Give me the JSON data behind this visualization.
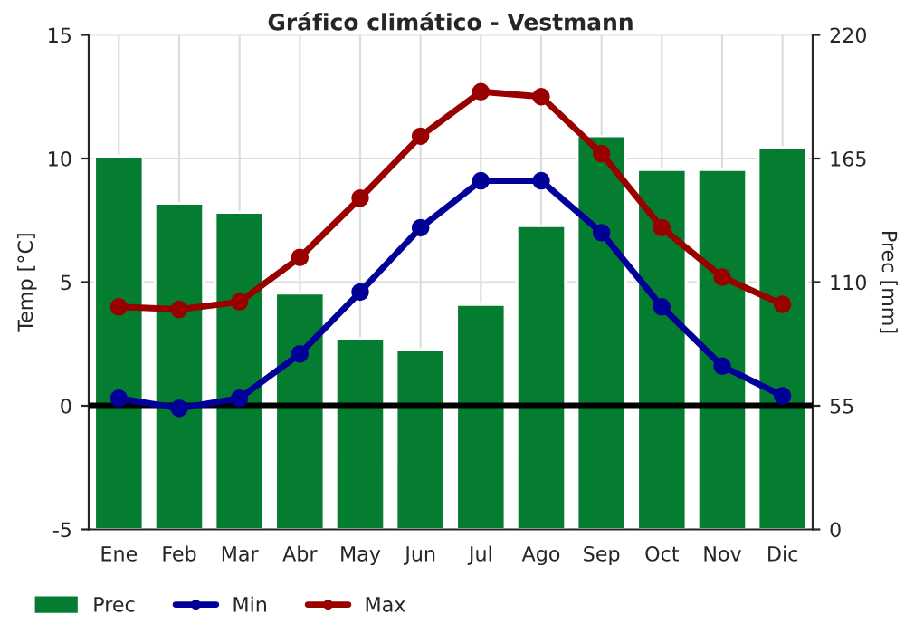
{
  "chart_data": {
    "type": "bar",
    "title": "Gráfico climático - Vestmann",
    "ylabel": "Temp [°C]",
    "y2label": "Prec [mm]",
    "categories": [
      "Ene",
      "Feb",
      "Mar",
      "Abr",
      "May",
      "Jun",
      "Jul",
      "Ago",
      "Sep",
      "Oct",
      "Nov",
      "Dic"
    ],
    "series": [
      {
        "name": "Prec",
        "axis": "y2",
        "color": "#057d30",
        "values": [
          166,
          145,
          141,
          105,
          85,
          80,
          100,
          135,
          175,
          160,
          160,
          170
        ]
      },
      {
        "name": "Min",
        "type": "line",
        "color": "#000099",
        "values": [
          0.3,
          -0.1,
          0.3,
          2.1,
          4.6,
          7.2,
          9.1,
          9.1,
          7.0,
          4.0,
          1.6,
          0.4
        ]
      },
      {
        "name": "Max",
        "type": "line",
        "color": "#990000",
        "values": [
          4.0,
          3.9,
          4.2,
          6.0,
          8.4,
          10.9,
          12.7,
          12.5,
          10.2,
          7.2,
          5.2,
          4.1
        ]
      }
    ],
    "ylim": [
      -5,
      15
    ],
    "yticks": [
      -5,
      0,
      5,
      10,
      15
    ],
    "y2lim": [
      0,
      220
    ],
    "y2ticks": [
      0,
      55,
      110,
      165,
      220
    ],
    "ref_lines": [
      {
        "axis": "y",
        "value": 0,
        "color": "#000000"
      }
    ],
    "grid": true,
    "legend": "bottom left",
    "marker": "circle",
    "line_style": "solid"
  }
}
